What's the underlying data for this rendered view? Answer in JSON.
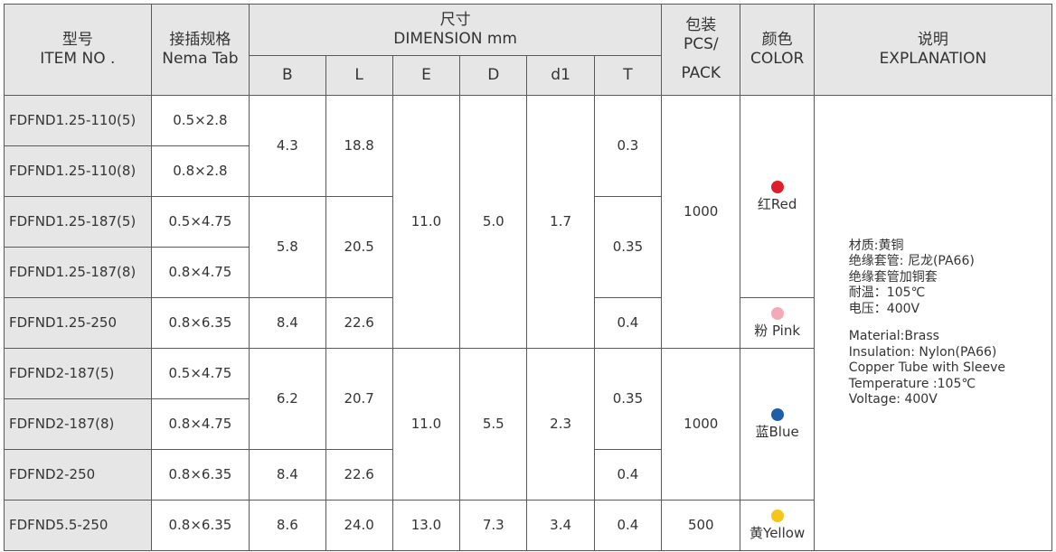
{
  "headers": {
    "model_cn": "型号",
    "model_en": "ITEM NO .",
    "tab_cn": "接插规格",
    "tab_en": "Nema Tab",
    "dim_cn": "尺寸",
    "dim_en": "DIMENSION mm",
    "pack_cn": "包装",
    "pack_en1": "PCS/",
    "pack_en2": "PACK",
    "color_cn": "颜色",
    "color_en": "COLOR",
    "expl_cn": "说明",
    "expl_en": "EXPLANATION",
    "dims": [
      "B",
      "L",
      "E",
      "D",
      "d1",
      "T"
    ]
  },
  "rows": [
    {
      "model": "FDFND1.25-110(5)",
      "tab": "0.5×2.8"
    },
    {
      "model": "FDFND1.25-110(8)",
      "tab": "0.8×2.8"
    },
    {
      "model": "FDFND1.25-187(5)",
      "tab": "0.5×4.75"
    },
    {
      "model": "FDFND1.25-187(8)",
      "tab": "0.8×4.75"
    },
    {
      "model": "FDFND1.25-250",
      "tab": "0.8×6.35"
    },
    {
      "model": "FDFND2-187(5)",
      "tab": "0.5×4.75"
    },
    {
      "model": "FDFND2-187(8)",
      "tab": "0.8×4.75"
    },
    {
      "model": "FDFND2-250",
      "tab": "0.8×6.35"
    },
    {
      "model": "FDFND5.5-250",
      "tab": "0.8×6.35"
    }
  ],
  "values": {
    "b_110": "4.3",
    "l_110": "18.8",
    "t_110": "0.3",
    "b_187": "5.8",
    "l_187": "20.5",
    "t_187": "0.35",
    "b_125_250": "8.4",
    "l_125_250": "22.6",
    "t_125_250": "0.4",
    "e_125": "11.0",
    "d_125": "5.0",
    "d1_125": "1.7",
    "pack_125": "1000",
    "b_2_187": "6.2",
    "l_2_187": "20.7",
    "t_2_187": "0.35",
    "b_2_250": "8.4",
    "l_2_250": "22.6",
    "t_2_250": "0.4",
    "e_2": "11.0",
    "d_2": "5.5",
    "d1_2": "2.3",
    "pack_2": "1000",
    "b_55": "8.6",
    "l_55": "24.0",
    "e_55": "13.0",
    "d_55": "7.3",
    "d1_55": "3.4",
    "t_55": "0.4",
    "pack_55": "500"
  },
  "colors": [
    {
      "label": "红Red",
      "hex": "#e01e2b"
    },
    {
      "label": "粉 Pink",
      "hex": "#f4a9b8"
    },
    {
      "label": "蓝Blue",
      "hex": "#1f5fa8"
    },
    {
      "label": "黄Yellow",
      "hex": "#f5c518"
    }
  ],
  "explanation": {
    "cn": [
      "材质:黄铜",
      "绝缘套管: 尼龙(PA66)",
      "绝缘套管加铜套",
      "耐温：105℃",
      "电压：400V"
    ],
    "en": [
      "Material:Brass",
      "Insulation: Nylon(PA66)",
      "Copper Tube with Sleeve",
      "Temperature :105℃",
      "Voltage: 400V"
    ]
  },
  "style": {
    "header_bg": "#e6e6e6",
    "border": "#595959"
  }
}
